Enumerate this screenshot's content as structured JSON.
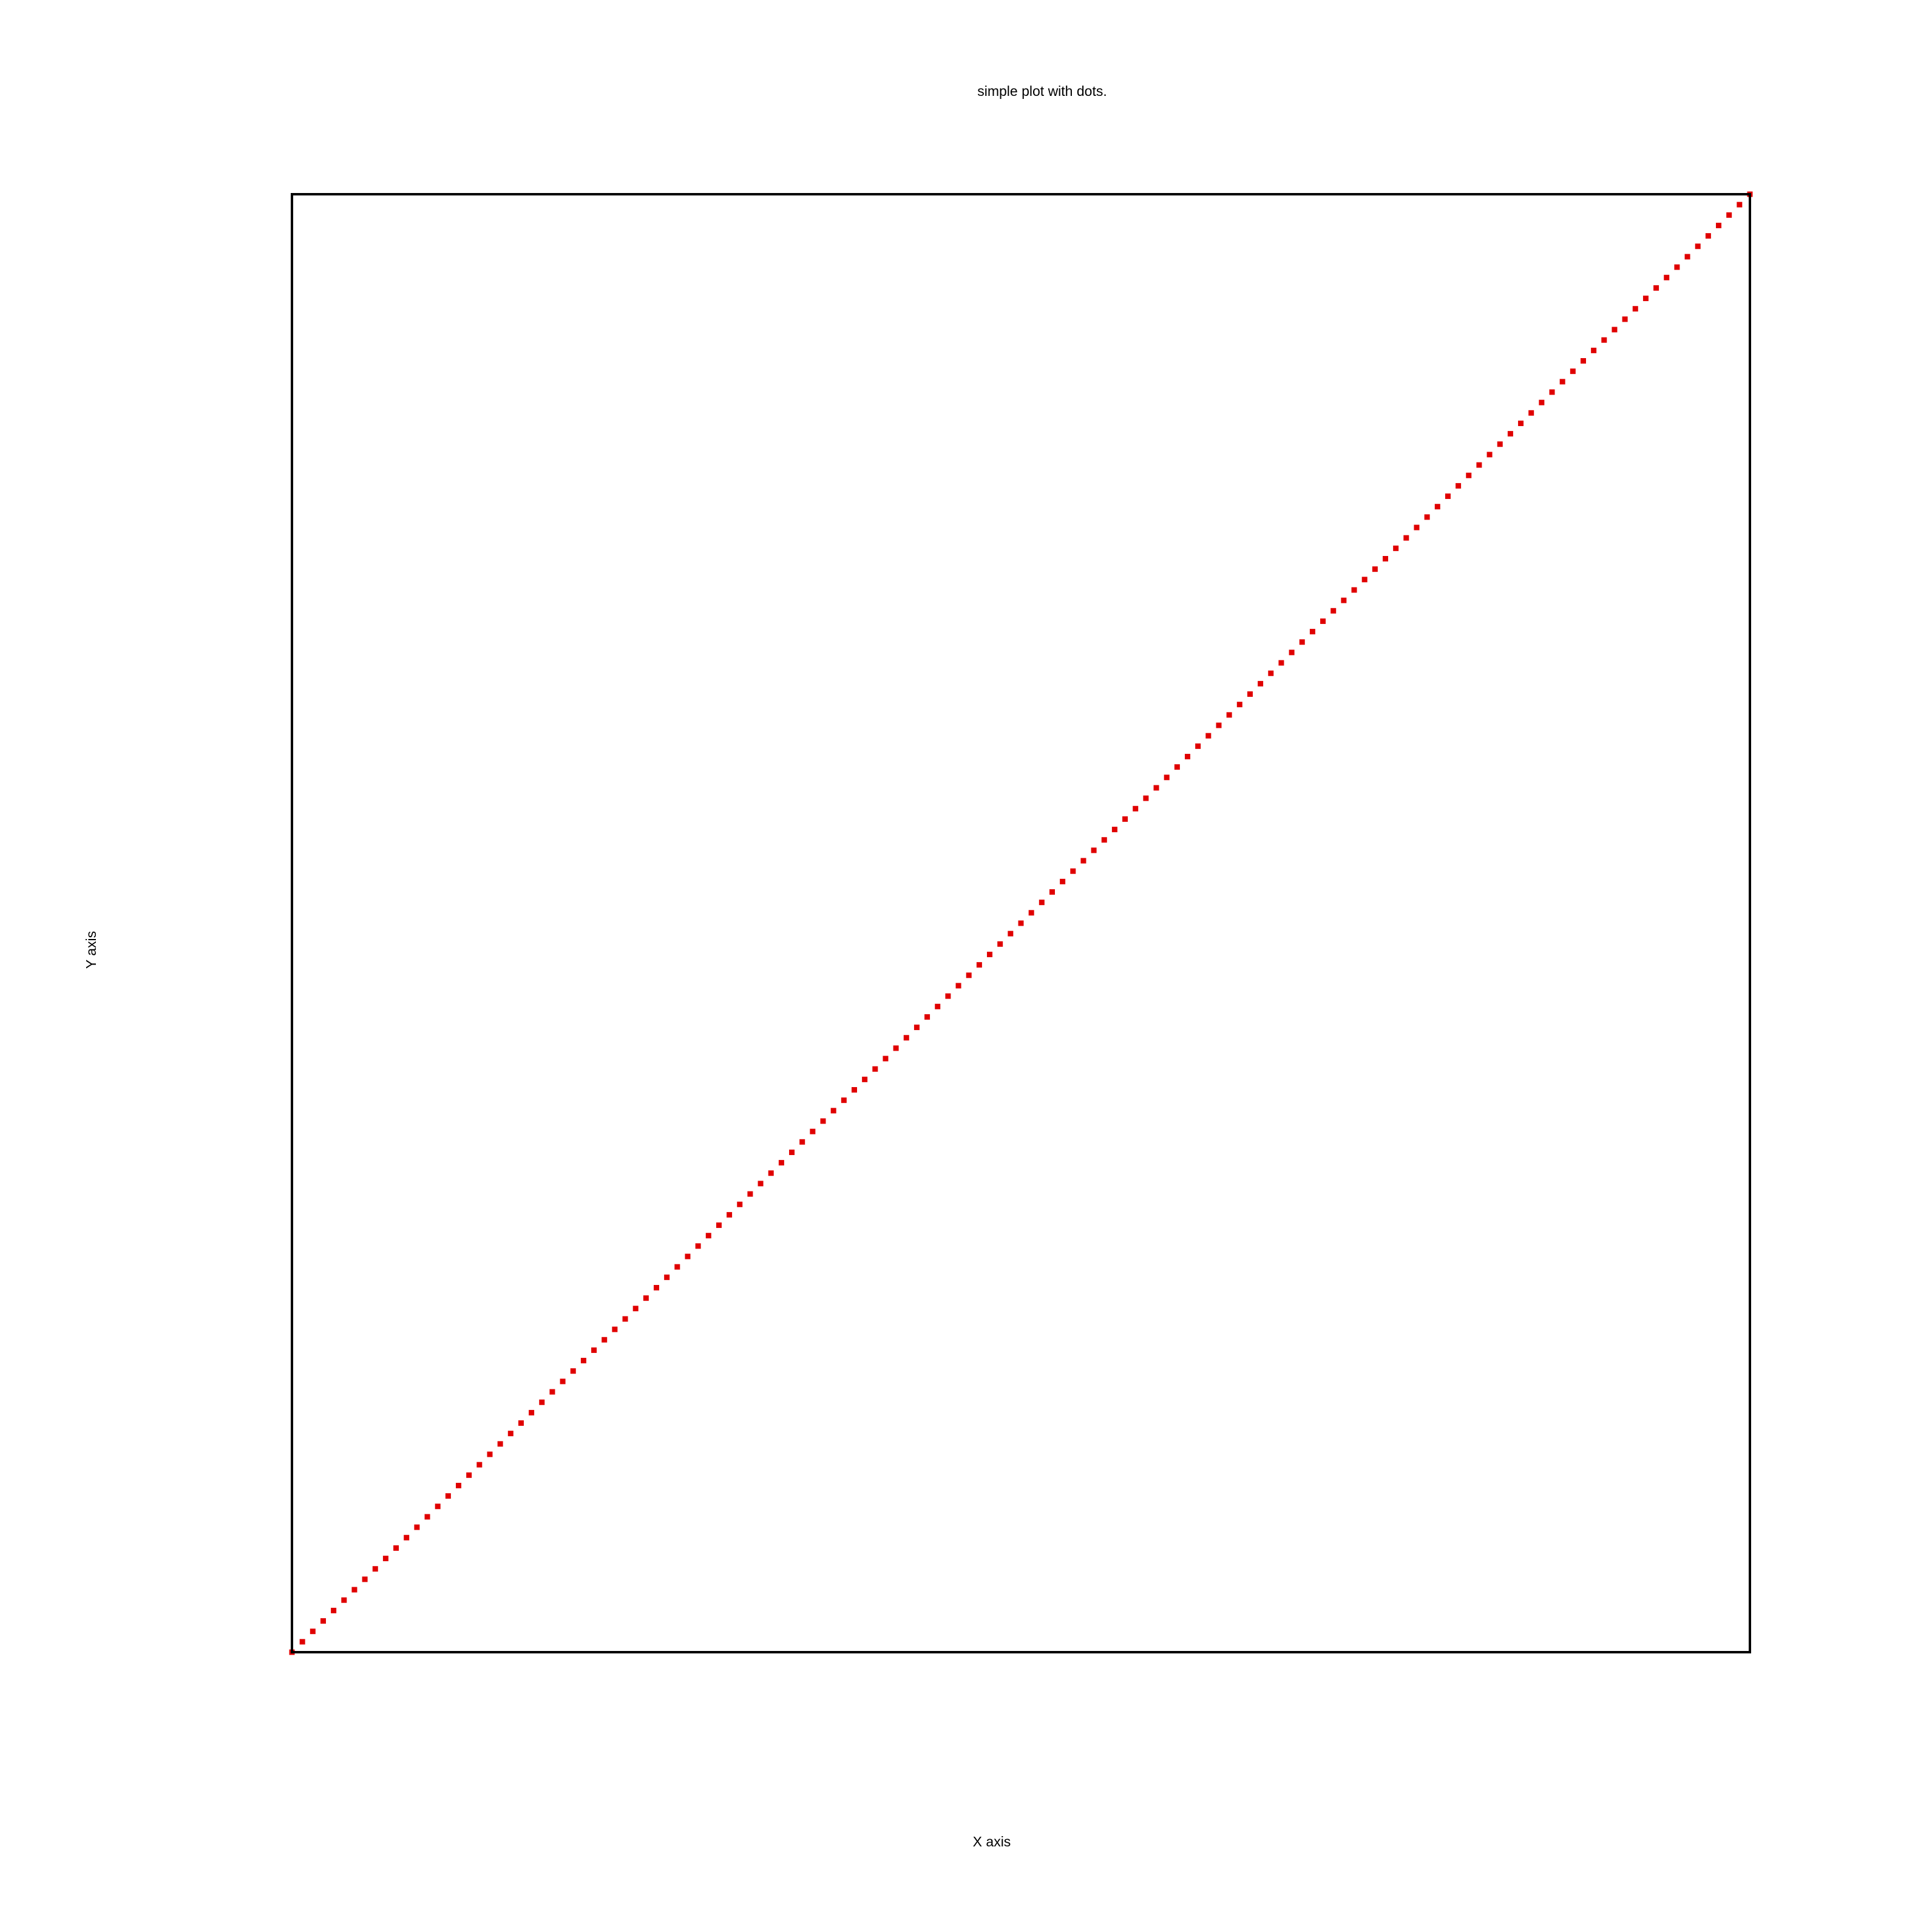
{
  "chart_data": {
    "type": "scatter",
    "title": "simple plot with dots.",
    "xlabel": "X axis",
    "ylabel": "Y axis",
    "xlim": [
      0,
      1
    ],
    "ylim": [
      0,
      1
    ],
    "grid": false,
    "axis_ticks": false,
    "frame": true,
    "marker": "dot",
    "series": [
      {
        "color": "#e00000",
        "x": [
          0,
          1
        ],
        "y": [
          0,
          1
        ],
        "description_of_density": "dense dotted line of points from lower-left corner to upper-right corner"
      }
    ]
  }
}
